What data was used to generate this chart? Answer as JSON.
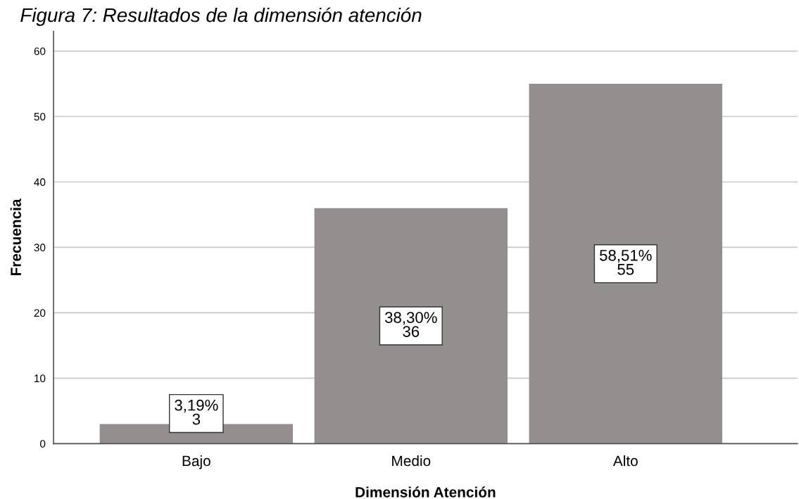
{
  "chart_data": {
    "type": "bar",
    "title": "Figura 7: Resultados de la dimensión atención",
    "xlabel": "Dimensión Atención",
    "ylabel": "Frecuencia",
    "categories": [
      "Bajo",
      "Medio",
      "Alto"
    ],
    "values": [
      3,
      36,
      55
    ],
    "color": "#938f8e",
    "value_labels": [
      "3,19%\n3",
      "38,30%\n36",
      "58,51%\n55"
    ],
    "ylim": [
      0,
      63
    ],
    "yticks": [
      0,
      10,
      20,
      30,
      40,
      50,
      60
    ],
    "grid": "y"
  }
}
